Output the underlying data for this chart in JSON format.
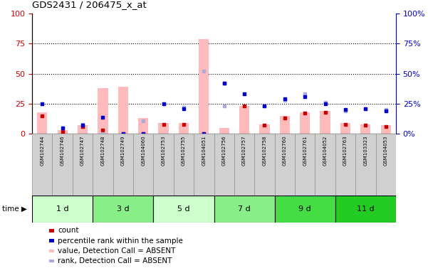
{
  "title": "GDS2431 / 206475_x_at",
  "samples": [
    "GSM102744",
    "GSM102746",
    "GSM102747",
    "GSM102748",
    "GSM102749",
    "GSM104060",
    "GSM102753",
    "GSM102755",
    "GSM104051",
    "GSM102756",
    "GSM102757",
    "GSM102758",
    "GSM102760",
    "GSM102761",
    "GSM104052",
    "GSM102763",
    "GSM103323",
    "GSM104053"
  ],
  "time_groups": [
    {
      "label": "1 d",
      "start": 0,
      "end": 3,
      "color": "#ccffcc"
    },
    {
      "label": "3 d",
      "start": 3,
      "end": 6,
      "color": "#88ee88"
    },
    {
      "label": "5 d",
      "start": 6,
      "end": 9,
      "color": "#ccffcc"
    },
    {
      "label": "7 d",
      "start": 9,
      "end": 12,
      "color": "#88ee88"
    },
    {
      "label": "9 d",
      "start": 12,
      "end": 15,
      "color": "#44dd44"
    },
    {
      "label": "11 d",
      "start": 15,
      "end": 18,
      "color": "#22cc22"
    }
  ],
  "count_values": [
    15,
    2,
    6,
    3,
    0,
    0,
    8,
    8,
    0,
    42,
    23,
    7,
    13,
    17,
    18,
    8,
    7,
    6
  ],
  "percentile_rank_values": [
    25,
    5,
    7,
    14,
    0,
    0,
    25,
    21,
    0,
    42,
    33,
    23,
    29,
    31,
    25,
    20,
    21,
    19
  ],
  "absent_value_values": [
    18,
    3,
    7,
    38,
    39,
    13,
    9,
    9,
    79,
    5,
    23,
    8,
    15,
    18,
    19,
    9,
    8,
    7
  ],
  "absent_rank_values": [
    25,
    5,
    8,
    0,
    0,
    11,
    25,
    22,
    52,
    23,
    33,
    23,
    28,
    33,
    26,
    19,
    21,
    20
  ],
  "ylim": [
    0,
    100
  ],
  "yticks": [
    0,
    25,
    50,
    75,
    100
  ],
  "left_color": "#cc0000",
  "right_color": "#0000cc",
  "absent_bar_color": "#ffbbbb",
  "absent_dot_color": "#aaaadd",
  "count_color": "#cc0000",
  "percentile_color": "#0000cc",
  "legend_items": [
    {
      "label": "count",
      "color": "#cc0000"
    },
    {
      "label": "percentile rank within the sample",
      "color": "#0000cc"
    },
    {
      "label": "value, Detection Call = ABSENT",
      "color": "#ffbbbb"
    },
    {
      "label": "rank, Detection Call = ABSENT",
      "color": "#aaaadd"
    }
  ]
}
